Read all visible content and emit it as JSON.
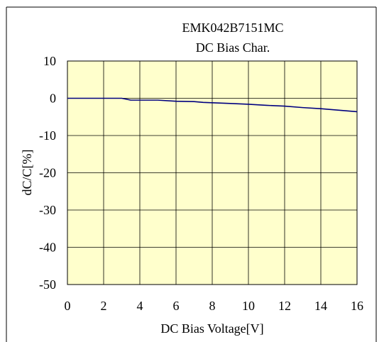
{
  "chart_data": {
    "type": "line",
    "title": "EMK042B7151MC",
    "subtitle": "DC Bias Char.",
    "xlabel": "DC Bias Voltage[V]",
    "ylabel": "dC/C[%]",
    "xlim": [
      0,
      16
    ],
    "ylim": [
      -50,
      10
    ],
    "x_ticks": [
      "0",
      "2",
      "4",
      "6",
      "8",
      "10",
      "12",
      "14",
      "16"
    ],
    "y_ticks": [
      "10",
      "0",
      "-10",
      "-20",
      "-30",
      "-40",
      "-50"
    ],
    "grid": true,
    "legend": "none",
    "series": [
      {
        "x": [
          0,
          1,
          2,
          3,
          3.5,
          4,
          5,
          6,
          7,
          7.5,
          8,
          9,
          10,
          11,
          12,
          13,
          14,
          15,
          16
        ],
        "y": [
          0,
          0,
          0,
          0,
          -0.5,
          -0.5,
          -0.5,
          -0.8,
          -0.9,
          -1.1,
          -1.2,
          -1.4,
          -1.6,
          -1.9,
          -2.1,
          -2.5,
          -2.8,
          -3.2,
          -3.6
        ]
      }
    ],
    "colors": {
      "plot_background": "#FFFFCC",
      "grid": "#000000",
      "line": "#000080",
      "frame": "#000000"
    }
  }
}
